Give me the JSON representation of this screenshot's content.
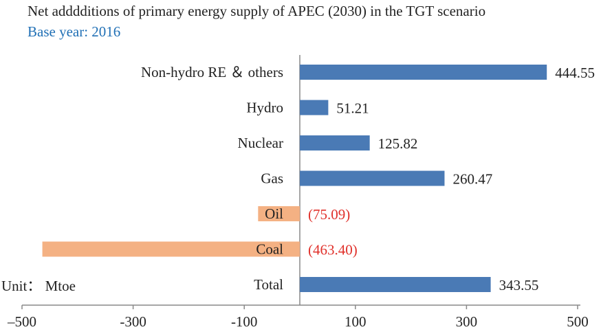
{
  "title": "Net adddditions of primary energy supply of APEC (2030) in the TGT scenario",
  "subtitle": "Base year: 2016",
  "unit_label": "Unit： Mtoe",
  "colors": {
    "positive_bar": "#4a7ab5",
    "negative_bar": "#f4b183",
    "negative_text": "#e0302a",
    "text": "#222222",
    "subtitle": "#1f6fb5",
    "axis": "#888888"
  },
  "chart_data": {
    "type": "bar",
    "orientation": "horizontal",
    "categories": [
      "Non-hydro RE ＆ others",
      "Hydro",
      "Nuclear",
      "Gas",
      "Oil",
      "Coal",
      "Total"
    ],
    "values": [
      444.55,
      51.21,
      125.82,
      260.47,
      -75.09,
      -463.4,
      343.55
    ],
    "value_labels": [
      "444.55",
      "51.21",
      "125.82",
      "260.47",
      "(75.09)",
      "(463.40)",
      "343.55"
    ],
    "xlim": [
      -500,
      500
    ],
    "xticks": [
      -500,
      -300,
      -100,
      100,
      300,
      500
    ],
    "xtick_labels": [
      "–500",
      "-300",
      "-100",
      "100",
      "300",
      "500"
    ],
    "title": "Net adddditions of primary energy supply of APEC (2030) in the TGT scenario",
    "subtitle": "Base year: 2016",
    "xlabel": "",
    "ylabel": "",
    "unit": "Mtoe",
    "grid": false,
    "legend": false
  }
}
